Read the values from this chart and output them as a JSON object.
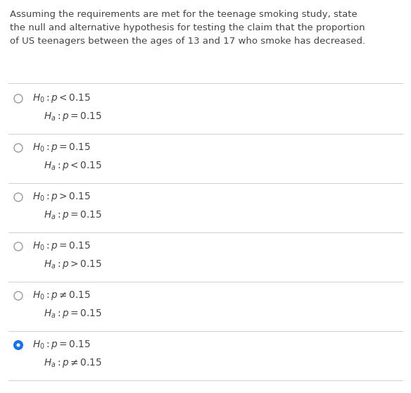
{
  "bg_color": "#ffffff",
  "text_color": "#444444",
  "question": "Assuming the requirements are met for the teenage smoking study, state\nthe null and alternative hypothesis for testing the claim that the proportion\nof US teenagers between the ages of 13 and 17 who smoke has decreased.",
  "question_fontsize": 9.5,
  "options": [
    {
      "h0": "$H_0 : p < 0.15$",
      "ha": "$H_a : p = 0.15$",
      "selected": false
    },
    {
      "h0": "$H_0 : p = 0.15$",
      "ha": "$H_a : p < 0.15$",
      "selected": false
    },
    {
      "h0": "$H_0 : p > 0.15$",
      "ha": "$H_a : p = 0.15$",
      "selected": false
    },
    {
      "h0": "$H_0 : p = 0.15$",
      "ha": "$H_a : p > 0.15$",
      "selected": false
    },
    {
      "h0": "$H_0 : p \\neq 0.15$",
      "ha": "$H_a : p = 0.15$",
      "selected": false
    },
    {
      "h0": "$H_0 : p = 0.15$",
      "ha": "$H_a : p \\neq 0.15$",
      "selected": true
    }
  ],
  "separator_color": "#d0d0d0",
  "circle_color_unselected": "#999999",
  "circle_color_selected_fill": "#1a73e8",
  "circle_color_selected_edge": "#1a73e8",
  "option_fontsize": 9.8
}
